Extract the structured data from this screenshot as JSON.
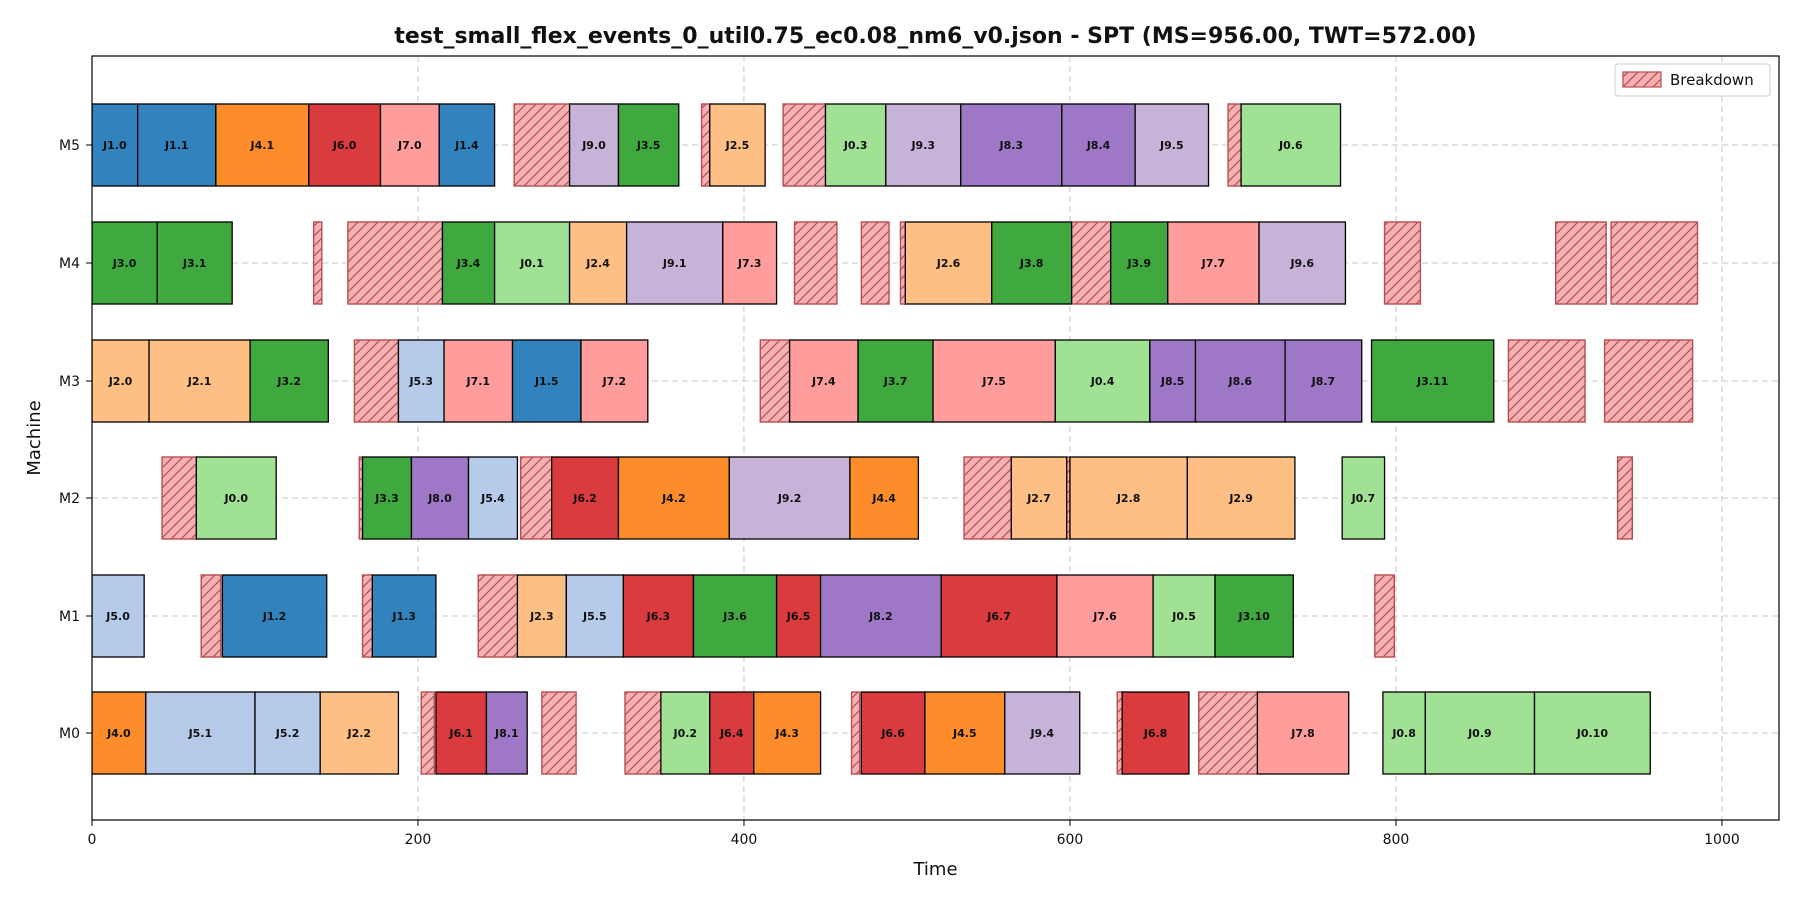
{
  "chart_data": {
    "type": "gantt",
    "title": "test_small_flex_events_0_util0.75_ec0.08_nm6_v0.json - SPT (MS=956.00, TWT=572.00)",
    "xlabel": "Time",
    "ylabel": "Machine",
    "xlim": [
      0,
      1035
    ],
    "x_ticks": [
      0,
      200,
      400,
      600,
      800,
      1000
    ],
    "machines": [
      "M0",
      "M1",
      "M2",
      "M3",
      "M4",
      "M5"
    ],
    "grid": true,
    "legend": {
      "position": "top-right",
      "label": "Breakdown"
    },
    "job_colors": {
      "J0": "#a1e194",
      "J1": "#3182bd",
      "J2": "#fdbf84",
      "J3": "#3fa83f",
      "J4": "#fd8d2a",
      "J5": "#b6cbea",
      "J6": "#d93b3e",
      "J7": "#fe9d9c",
      "J8": "#9e78c6",
      "J9": "#c8b3d8"
    },
    "breakdown_color": "#f4b0b3",
    "breakdown_edge": "#b84e50",
    "operations": [
      {
        "machine": "M5",
        "label": "J1.0",
        "job": "J1",
        "start": 0,
        "end": 28
      },
      {
        "machine": "M5",
        "label": "J1.1",
        "job": "J1",
        "start": 28,
        "end": 76
      },
      {
        "machine": "M5",
        "label": "J4.1",
        "job": "J4",
        "start": 76,
        "end": 133
      },
      {
        "machine": "M5",
        "label": "J6.0",
        "job": "J6",
        "start": 133,
        "end": 177
      },
      {
        "machine": "M5",
        "label": "J7.0",
        "job": "J7",
        "start": 177,
        "end": 213
      },
      {
        "machine": "M5",
        "label": "J1.4",
        "job": "J1",
        "start": 213,
        "end": 247
      },
      {
        "machine": "M5",
        "label": "J9.0",
        "job": "J9",
        "start": 293,
        "end": 323
      },
      {
        "machine": "M5",
        "label": "J3.5",
        "job": "J3",
        "start": 323,
        "end": 360
      },
      {
        "machine": "M5",
        "label": "J2.5",
        "job": "J2",
        "start": 379,
        "end": 413
      },
      {
        "machine": "M5",
        "label": "J0.3",
        "job": "J0",
        "start": 450,
        "end": 487
      },
      {
        "machine": "M5",
        "label": "J9.3",
        "job": "J9",
        "start": 487,
        "end": 533
      },
      {
        "machine": "M5",
        "label": "J8.3",
        "job": "J8",
        "start": 533,
        "end": 595
      },
      {
        "machine": "M5",
        "label": "J8.4",
        "job": "J8",
        "start": 595,
        "end": 640
      },
      {
        "machine": "M5",
        "label": "J9.5",
        "job": "J9",
        "start": 640,
        "end": 685
      },
      {
        "machine": "M5",
        "label": "J0.6",
        "job": "J0",
        "start": 705,
        "end": 766
      },
      {
        "machine": "M4",
        "label": "J3.0",
        "job": "J3",
        "start": 0,
        "end": 40
      },
      {
        "machine": "M4",
        "label": "J3.1",
        "job": "J3",
        "start": 40,
        "end": 86
      },
      {
        "machine": "M4",
        "label": "J3.4",
        "job": "J3",
        "start": 215,
        "end": 247
      },
      {
        "machine": "M4",
        "label": "J0.1",
        "job": "J0",
        "start": 247,
        "end": 293
      },
      {
        "machine": "M4",
        "label": "J2.4",
        "job": "J2",
        "start": 293,
        "end": 328
      },
      {
        "machine": "M4",
        "label": "J9.1",
        "job": "J9",
        "start": 328,
        "end": 387
      },
      {
        "machine": "M4",
        "label": "J7.3",
        "job": "J7",
        "start": 387,
        "end": 420
      },
      {
        "machine": "M4",
        "label": "J2.6",
        "job": "J2",
        "start": 499,
        "end": 552
      },
      {
        "machine": "M4",
        "label": "J3.8",
        "job": "J3",
        "start": 552,
        "end": 601
      },
      {
        "machine": "M4",
        "label": "J3.9",
        "job": "J3",
        "start": 625,
        "end": 660
      },
      {
        "machine": "M4",
        "label": "J7.7",
        "job": "J7",
        "start": 660,
        "end": 716
      },
      {
        "machine": "M4",
        "label": "J9.6",
        "job": "J9",
        "start": 716,
        "end": 769
      },
      {
        "machine": "M3",
        "label": "J2.0",
        "job": "J2",
        "start": 0,
        "end": 35
      },
      {
        "machine": "M3",
        "label": "J2.1",
        "job": "J2",
        "start": 35,
        "end": 97
      },
      {
        "machine": "M3",
        "label": "J3.2",
        "job": "J3",
        "start": 97,
        "end": 145
      },
      {
        "machine": "M3",
        "label": "J5.3",
        "job": "J5",
        "start": 188,
        "end": 216
      },
      {
        "machine": "M3",
        "label": "J7.1",
        "job": "J7",
        "start": 216,
        "end": 258
      },
      {
        "machine": "M3",
        "label": "J1.5",
        "job": "J1",
        "start": 258,
        "end": 300
      },
      {
        "machine": "M3",
        "label": "J7.2",
        "job": "J7",
        "start": 300,
        "end": 341
      },
      {
        "machine": "M3",
        "label": "J7.4",
        "job": "J7",
        "start": 428,
        "end": 470
      },
      {
        "machine": "M3",
        "label": "J3.7",
        "job": "J3",
        "start": 470,
        "end": 516
      },
      {
        "machine": "M3",
        "label": "J7.5",
        "job": "J7",
        "start": 516,
        "end": 591
      },
      {
        "machine": "M3",
        "label": "J0.4",
        "job": "J0",
        "start": 591,
        "end": 649
      },
      {
        "machine": "M3",
        "label": "J8.5",
        "job": "J8",
        "start": 649,
        "end": 677
      },
      {
        "machine": "M3",
        "label": "J8.6",
        "job": "J8",
        "start": 677,
        "end": 732
      },
      {
        "machine": "M3",
        "label": "J8.7",
        "job": "J8",
        "start": 732,
        "end": 779
      },
      {
        "machine": "M3",
        "label": "J3.11",
        "job": "J3",
        "start": 785,
        "end": 860
      },
      {
        "machine": "M2",
        "label": "J0.0",
        "job": "J0",
        "start": 64,
        "end": 113
      },
      {
        "machine": "M2",
        "label": "J3.3",
        "job": "J3",
        "start": 166,
        "end": 196
      },
      {
        "machine": "M2",
        "label": "J8.0",
        "job": "J8",
        "start": 196,
        "end": 231
      },
      {
        "machine": "M2",
        "label": "J5.4",
        "job": "J5",
        "start": 231,
        "end": 261
      },
      {
        "machine": "M2",
        "label": "J6.2",
        "job": "J6",
        "start": 282,
        "end": 323
      },
      {
        "machine": "M2",
        "label": "J4.2",
        "job": "J4",
        "start": 323,
        "end": 391
      },
      {
        "machine": "M2",
        "label": "J9.2",
        "job": "J9",
        "start": 391,
        "end": 465
      },
      {
        "machine": "M2",
        "label": "J4.4",
        "job": "J4",
        "start": 465,
        "end": 507
      },
      {
        "machine": "M2",
        "label": "J2.7",
        "job": "J2",
        "start": 564,
        "end": 598
      },
      {
        "machine": "M2",
        "label": "J2.8",
        "job": "J2",
        "start": 600,
        "end": 672
      },
      {
        "machine": "M2",
        "label": "J2.9",
        "job": "J2",
        "start": 672,
        "end": 738
      },
      {
        "machine": "M2",
        "label": "J0.7",
        "job": "J0",
        "start": 767,
        "end": 793
      },
      {
        "machine": "M1",
        "label": "J5.0",
        "job": "J5",
        "start": 0,
        "end": 32
      },
      {
        "machine": "M1",
        "label": "J1.2",
        "job": "J1",
        "start": 80,
        "end": 144
      },
      {
        "machine": "M1",
        "label": "J1.3",
        "job": "J1",
        "start": 172,
        "end": 211
      },
      {
        "machine": "M1",
        "label": "J2.3",
        "job": "J2",
        "start": 261,
        "end": 291
      },
      {
        "machine": "M1",
        "label": "J5.5",
        "job": "J5",
        "start": 291,
        "end": 326
      },
      {
        "machine": "M1",
        "label": "J6.3",
        "job": "J6",
        "start": 326,
        "end": 369
      },
      {
        "machine": "M1",
        "label": "J3.6",
        "job": "J3",
        "start": 369,
        "end": 420
      },
      {
        "machine": "M1",
        "label": "J6.5",
        "job": "J6",
        "start": 420,
        "end": 447
      },
      {
        "machine": "M1",
        "label": "J8.2",
        "job": "J8",
        "start": 447,
        "end": 521
      },
      {
        "machine": "M1",
        "label": "J6.7",
        "job": "J6",
        "start": 521,
        "end": 592
      },
      {
        "machine": "M1",
        "label": "J7.6",
        "job": "J7",
        "start": 592,
        "end": 651
      },
      {
        "machine": "M1",
        "label": "J0.5",
        "job": "J0",
        "start": 651,
        "end": 689
      },
      {
        "machine": "M1",
        "label": "J3.10",
        "job": "J3",
        "start": 689,
        "end": 737
      },
      {
        "machine": "M0",
        "label": "J4.0",
        "job": "J4",
        "start": 0,
        "end": 33
      },
      {
        "machine": "M0",
        "label": "J5.1",
        "job": "J5",
        "start": 33,
        "end": 100
      },
      {
        "machine": "M0",
        "label": "J5.2",
        "job": "J5",
        "start": 100,
        "end": 140
      },
      {
        "machine": "M0",
        "label": "J2.2",
        "job": "J2",
        "start": 140,
        "end": 188
      },
      {
        "machine": "M0",
        "label": "J6.1",
        "job": "J6",
        "start": 211,
        "end": 242
      },
      {
        "machine": "M0",
        "label": "J8.1",
        "job": "J8",
        "start": 242,
        "end": 267
      },
      {
        "machine": "M0",
        "label": "J0.2",
        "job": "J0",
        "start": 349,
        "end": 379
      },
      {
        "machine": "M0",
        "label": "J6.4",
        "job": "J6",
        "start": 379,
        "end": 406
      },
      {
        "machine": "M0",
        "label": "J4.3",
        "job": "J4",
        "start": 406,
        "end": 447
      },
      {
        "machine": "M0",
        "label": "J6.6",
        "job": "J6",
        "start": 472,
        "end": 511
      },
      {
        "machine": "M0",
        "label": "J4.5",
        "job": "J4",
        "start": 511,
        "end": 560
      },
      {
        "machine": "M0",
        "label": "J9.4",
        "job": "J9",
        "start": 560,
        "end": 606
      },
      {
        "machine": "M0",
        "label": "J6.8",
        "job": "J6",
        "start": 632,
        "end": 673
      },
      {
        "machine": "M0",
        "label": "J7.8",
        "job": "J7",
        "start": 715,
        "end": 771
      },
      {
        "machine": "M0",
        "label": "J0.8",
        "job": "J0",
        "start": 792,
        "end": 818
      },
      {
        "machine": "M0",
        "label": "J0.9",
        "job": "J0",
        "start": 818,
        "end": 885
      },
      {
        "machine": "M0",
        "label": "J0.10",
        "job": "J0",
        "start": 885,
        "end": 956
      }
    ],
    "breakdowns": [
      {
        "machine": "M5",
        "start": 259,
        "end": 293
      },
      {
        "machine": "M5",
        "start": 374,
        "end": 379
      },
      {
        "machine": "M5",
        "start": 424,
        "end": 450
      },
      {
        "machine": "M5",
        "start": 697,
        "end": 705
      },
      {
        "machine": "M4",
        "start": 136,
        "end": 141
      },
      {
        "machine": "M4",
        "start": 157,
        "end": 215
      },
      {
        "machine": "M4",
        "start": 431,
        "end": 457
      },
      {
        "machine": "M4",
        "start": 472,
        "end": 489
      },
      {
        "machine": "M4",
        "start": 496,
        "end": 499
      },
      {
        "machine": "M4",
        "start": 601,
        "end": 625
      },
      {
        "machine": "M4",
        "start": 793,
        "end": 815
      },
      {
        "machine": "M4",
        "start": 898,
        "end": 929
      },
      {
        "machine": "M4",
        "start": 932,
        "end": 985
      },
      {
        "machine": "M3",
        "start": 161,
        "end": 188
      },
      {
        "machine": "M3",
        "start": 410,
        "end": 428
      },
      {
        "machine": "M3",
        "start": 869,
        "end": 916
      },
      {
        "machine": "M3",
        "start": 928,
        "end": 982
      },
      {
        "machine": "M2",
        "start": 43,
        "end": 64
      },
      {
        "machine": "M2",
        "start": 164,
        "end": 166
      },
      {
        "machine": "M2",
        "start": 263,
        "end": 282
      },
      {
        "machine": "M2",
        "start": 535,
        "end": 564
      },
      {
        "machine": "M2",
        "start": 598,
        "end": 600
      },
      {
        "machine": "M2",
        "start": 936,
        "end": 945
      },
      {
        "machine": "M1",
        "start": 67,
        "end": 79
      },
      {
        "machine": "M1",
        "start": 166,
        "end": 172
      },
      {
        "machine": "M1",
        "start": 237,
        "end": 261
      },
      {
        "machine": "M1",
        "start": 787,
        "end": 799
      },
      {
        "machine": "M0",
        "start": 202,
        "end": 210
      },
      {
        "machine": "M0",
        "start": 276,
        "end": 297
      },
      {
        "machine": "M0",
        "start": 327,
        "end": 350
      },
      {
        "machine": "M0",
        "start": 466,
        "end": 471
      },
      {
        "machine": "M0",
        "start": 629,
        "end": 633
      },
      {
        "machine": "M0",
        "start": 679,
        "end": 715
      }
    ]
  }
}
